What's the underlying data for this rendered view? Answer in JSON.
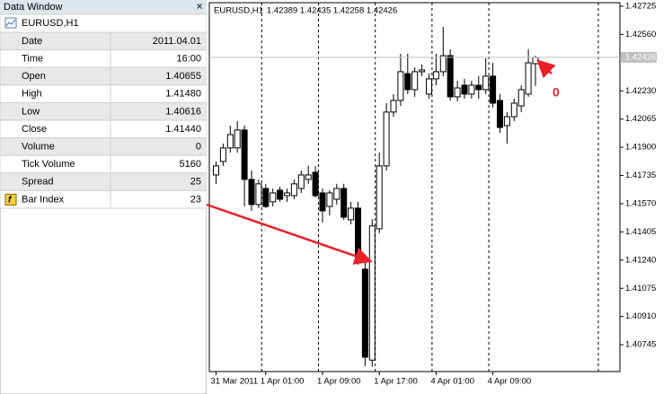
{
  "data_window": {
    "title": "Data Window",
    "symbol": "EURUSD,H1",
    "rows": [
      [
        "Date",
        "2011.04.01"
      ],
      [
        "Time",
        "16:00"
      ],
      [
        "Open",
        "1.40655"
      ],
      [
        "High",
        "1.41480"
      ],
      [
        "Low",
        "1.40616"
      ],
      [
        "Close",
        "1.41440"
      ],
      [
        "Volume",
        "0"
      ],
      [
        "Tick Volume",
        "5160"
      ],
      [
        "Spread",
        "25"
      ],
      [
        "Bar Index",
        "23"
      ]
    ]
  },
  "chart_data": {
    "type": "candlestick",
    "title": "EURUSD,H1",
    "open": [
      1.41738,
      1.41817,
      1.41896,
      1.41896,
      1.42001,
      1.41712,
      1.41565,
      1.41659,
      1.41581,
      1.41649,
      1.41617,
      1.41617,
      1.41659,
      1.41712,
      1.41754,
      1.41633,
      1.41554,
      1.41596,
      1.41659,
      1.41476,
      1.41544,
      1.41187,
      1.40655,
      1.41423,
      1.41791,
      1.42106,
      1.42174,
      1.42331,
      1.42237,
      1.42342,
      1.42211,
      1.423,
      1.42342,
      1.42436,
      1.42195,
      1.42263,
      1.42211,
      1.42263,
      1.42237,
      1.42316,
      1.42174,
      1.42027,
      1.42079,
      1.42142,
      1.42211,
      1.42389
    ],
    "high": [
      1.41817,
      1.41922,
      1.42027,
      1.42053,
      1.42027,
      1.41764,
      1.41712,
      1.41686,
      1.41659,
      1.4167,
      1.41659,
      1.41712,
      1.41764,
      1.41791,
      1.41791,
      1.41659,
      1.41649,
      1.41686,
      1.41686,
      1.41581,
      1.41581,
      1.41239,
      1.4148,
      1.41869,
      1.42158,
      1.42211,
      1.42447,
      1.42447,
      1.42368,
      1.42384,
      1.42331,
      1.42447,
      1.42604,
      1.42473,
      1.42289,
      1.423,
      1.42289,
      1.42316,
      1.42421,
      1.42394,
      1.42211,
      1.42106,
      1.42184,
      1.42263,
      1.42473,
      1.42435
    ],
    "low": [
      1.41686,
      1.41791,
      1.41869,
      1.41869,
      1.41554,
      1.41528,
      1.41544,
      1.41544,
      1.41554,
      1.41581,
      1.41581,
      1.41596,
      1.41633,
      1.41686,
      1.41607,
      1.4146,
      1.41502,
      1.41565,
      1.41476,
      1.41449,
      1.41213,
      1.4062,
      1.40616,
      1.41397,
      1.41764,
      1.42079,
      1.42142,
      1.42211,
      1.42195,
      1.42316,
      1.42184,
      1.42263,
      1.42316,
      1.42174,
      1.42169,
      1.42184,
      1.42184,
      1.42184,
      1.42211,
      1.42132,
      1.41985,
      1.41922,
      1.42053,
      1.42106,
      1.42195,
      1.42258
    ],
    "close": [
      1.41791,
      1.41896,
      1.41974,
      1.42001,
      1.41712,
      1.41565,
      1.41686,
      1.41554,
      1.41633,
      1.41596,
      1.41633,
      1.41686,
      1.41738,
      1.41738,
      1.41617,
      1.41528,
      1.41633,
      1.41659,
      1.41491,
      1.41544,
      1.41229,
      1.40672,
      1.4144,
      1.41791,
      1.42106,
      1.42174,
      1.42342,
      1.42237,
      1.42342,
      1.42352,
      1.423,
      1.42342,
      1.42436,
      1.42195,
      1.42247,
      1.42211,
      1.42263,
      1.42237,
      1.42316,
      1.42158,
      1.42016,
      1.42079,
      1.42158,
      1.42237,
      1.42394,
      1.42426
    ],
    "ylim": [
      1.40588,
      1.42751
    ],
    "yticks": [
      1.42725,
      {
        "value": 1.4256,
        "label": "1.42560"
      },
      {
        "value": 1.4223,
        "label": "1.42230"
      },
      1.42065,
      {
        "value": 1.419,
        "label": "1.41900"
      },
      1.41735,
      {
        "value": 1.4157,
        "label": "1.41570"
      },
      1.41405,
      {
        "value": 1.4124,
        "label": "1.41240"
      },
      1.41075,
      {
        "value": 1.4091,
        "label": "1.40910"
      },
      1.40745
    ],
    "xlim": [
      -0.95,
      56.9
    ],
    "xticks": [
      {
        "value": 0,
        "label": "31 Mar 2011"
      },
      {
        "value": 7,
        "label": "1 Apr 01:00"
      },
      {
        "value": 15,
        "label": "1 Apr 09:00"
      },
      {
        "value": 23,
        "label": "1 Apr 17:00"
      },
      {
        "value": 31,
        "label": "4 Apr 01:00"
      },
      {
        "value": 39,
        "label": "4 Apr 09:00"
      }
    ],
    "bull_color": "#ffffff",
    "bear_color": "#000000",
    "grid": true,
    "annotation": "0",
    "annotation_color": "#e8202a"
  }
}
